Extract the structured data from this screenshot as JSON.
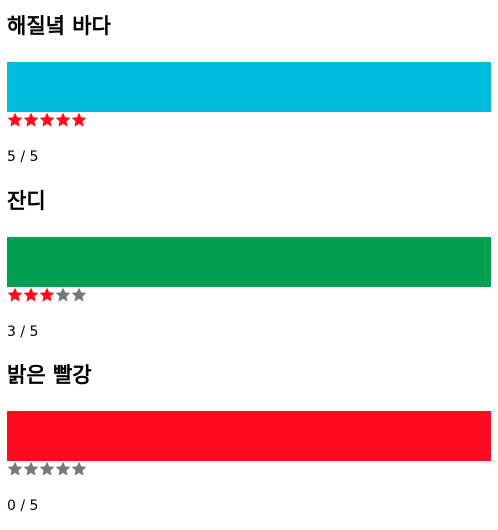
{
  "filled_star_color": "#ff0a1e",
  "empty_star_color": "#777777",
  "star_icon": "star-icon",
  "items": [
    {
      "title": "해질녘 바다",
      "color": "#00bcdc",
      "rating": 5,
      "max": 5,
      "score_text": "5 / 5"
    },
    {
      "title": "잔디",
      "color": "#00a050",
      "rating": 3,
      "max": 5,
      "score_text": "3 / 5"
    },
    {
      "title": "밝은 빨강",
      "color": "#ff0a1e",
      "rating": 0,
      "max": 5,
      "score_text": "0 / 5"
    }
  ]
}
